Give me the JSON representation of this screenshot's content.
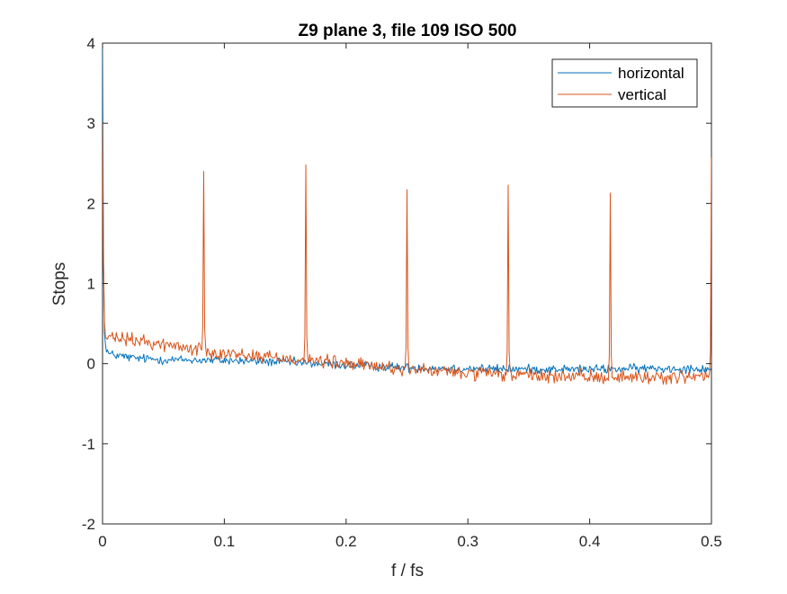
{
  "chart_data": {
    "type": "line",
    "title": "Z9 plane 3, file 109 ISO 500",
    "xlabel": "f / fs",
    "ylabel": "Stops",
    "xlim": [
      0,
      0.5
    ],
    "ylim": [
      -2,
      4
    ],
    "xticks": [
      0,
      0.1,
      0.2,
      0.3,
      0.4,
      0.5
    ],
    "xtick_labels": [
      "0",
      "0.1",
      "0.2",
      "0.3",
      "0.4",
      "0.5"
    ],
    "yticks": [
      -2,
      -1,
      0,
      1,
      2,
      3,
      4
    ],
    "ytick_labels": [
      "-2",
      "-1",
      "0",
      "1",
      "2",
      "3",
      "4"
    ],
    "grid": false,
    "legend_position": "top-right",
    "series": [
      {
        "name": "horizontal",
        "color": "#0072BD",
        "points": [
          [
            0,
            4.0
          ],
          [
            0.001,
            0.6
          ],
          [
            0.002,
            0.25
          ],
          [
            0.005,
            0.12
          ],
          [
            0.025,
            0.07
          ],
          [
            0.05,
            0.05
          ],
          [
            0.1,
            0.04
          ],
          [
            0.15,
            0.02
          ],
          [
            0.2,
            -0.02
          ],
          [
            0.25,
            -0.05
          ],
          [
            0.3,
            -0.06
          ],
          [
            0.35,
            -0.07
          ],
          [
            0.4,
            -0.07
          ],
          [
            0.45,
            -0.06
          ],
          [
            0.5,
            -0.06
          ]
        ],
        "noise_amplitude": 0.04
      },
      {
        "name": "vertical",
        "color": "#D95319",
        "points": [
          [
            0,
            3.0
          ],
          [
            0.001,
            0.8
          ],
          [
            0.002,
            0.33
          ],
          [
            0.02,
            0.3
          ],
          [
            0.05,
            0.24
          ],
          [
            0.1,
            0.13
          ],
          [
            0.15,
            0.07
          ],
          [
            0.2,
            0.0
          ],
          [
            0.25,
            -0.07
          ],
          [
            0.3,
            -0.12
          ],
          [
            0.35,
            -0.15
          ],
          [
            0.4,
            -0.17
          ],
          [
            0.45,
            -0.17
          ],
          [
            0.5,
            -0.16
          ]
        ],
        "noise_amplitude": 0.06,
        "spikes": [
          {
            "x": 0.0833,
            "y": 2.4
          },
          {
            "x": 0.1667,
            "y": 2.48
          },
          {
            "x": 0.25,
            "y": 2.17
          },
          {
            "x": 0.3333,
            "y": 2.23
          },
          {
            "x": 0.4167,
            "y": 2.13
          },
          {
            "x": 0.5,
            "y": 2.57
          }
        ]
      }
    ]
  }
}
